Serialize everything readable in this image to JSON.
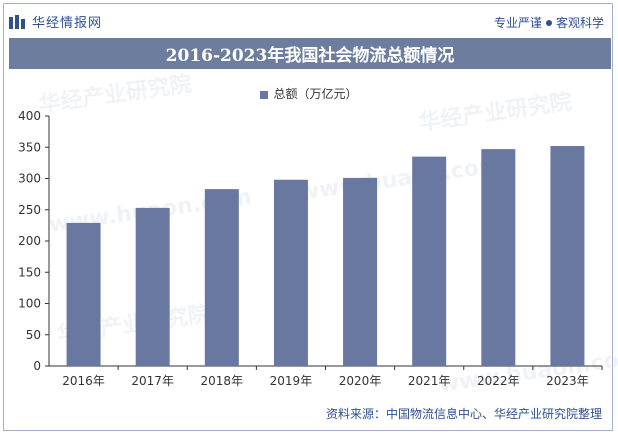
{
  "header": {
    "brand_name": "华经情报网",
    "tagline_left": "专业严谨",
    "tagline_right": "客观科学"
  },
  "chart_data": {
    "type": "bar",
    "title": "2016-2023年我国社会物流总额情况",
    "categories": [
      "2016年",
      "2017年",
      "2018年",
      "2019年",
      "2020年",
      "2021年",
      "2022年",
      "2023年"
    ],
    "series": [
      {
        "name": "总额（万亿元）",
        "values": [
          229,
          253,
          283,
          298,
          301,
          335,
          347,
          352
        ],
        "color": "#6878a0"
      }
    ],
    "ylim": [
      0,
      400
    ],
    "yticks": [
      "0",
      "50",
      "100",
      "150",
      "200",
      "250",
      "300",
      "350",
      "400"
    ],
    "grid": false,
    "legend": "top-center"
  },
  "footer": {
    "source": "资料来源：中国物流信息中心、华经产业研究院整理"
  },
  "watermarks": [
    "华经产业研究院",
    "www.huaon.com"
  ],
  "colors": {
    "banner": "#6d7d9e",
    "brand_text": "#2f4f8f",
    "bar": "#6878a0"
  }
}
